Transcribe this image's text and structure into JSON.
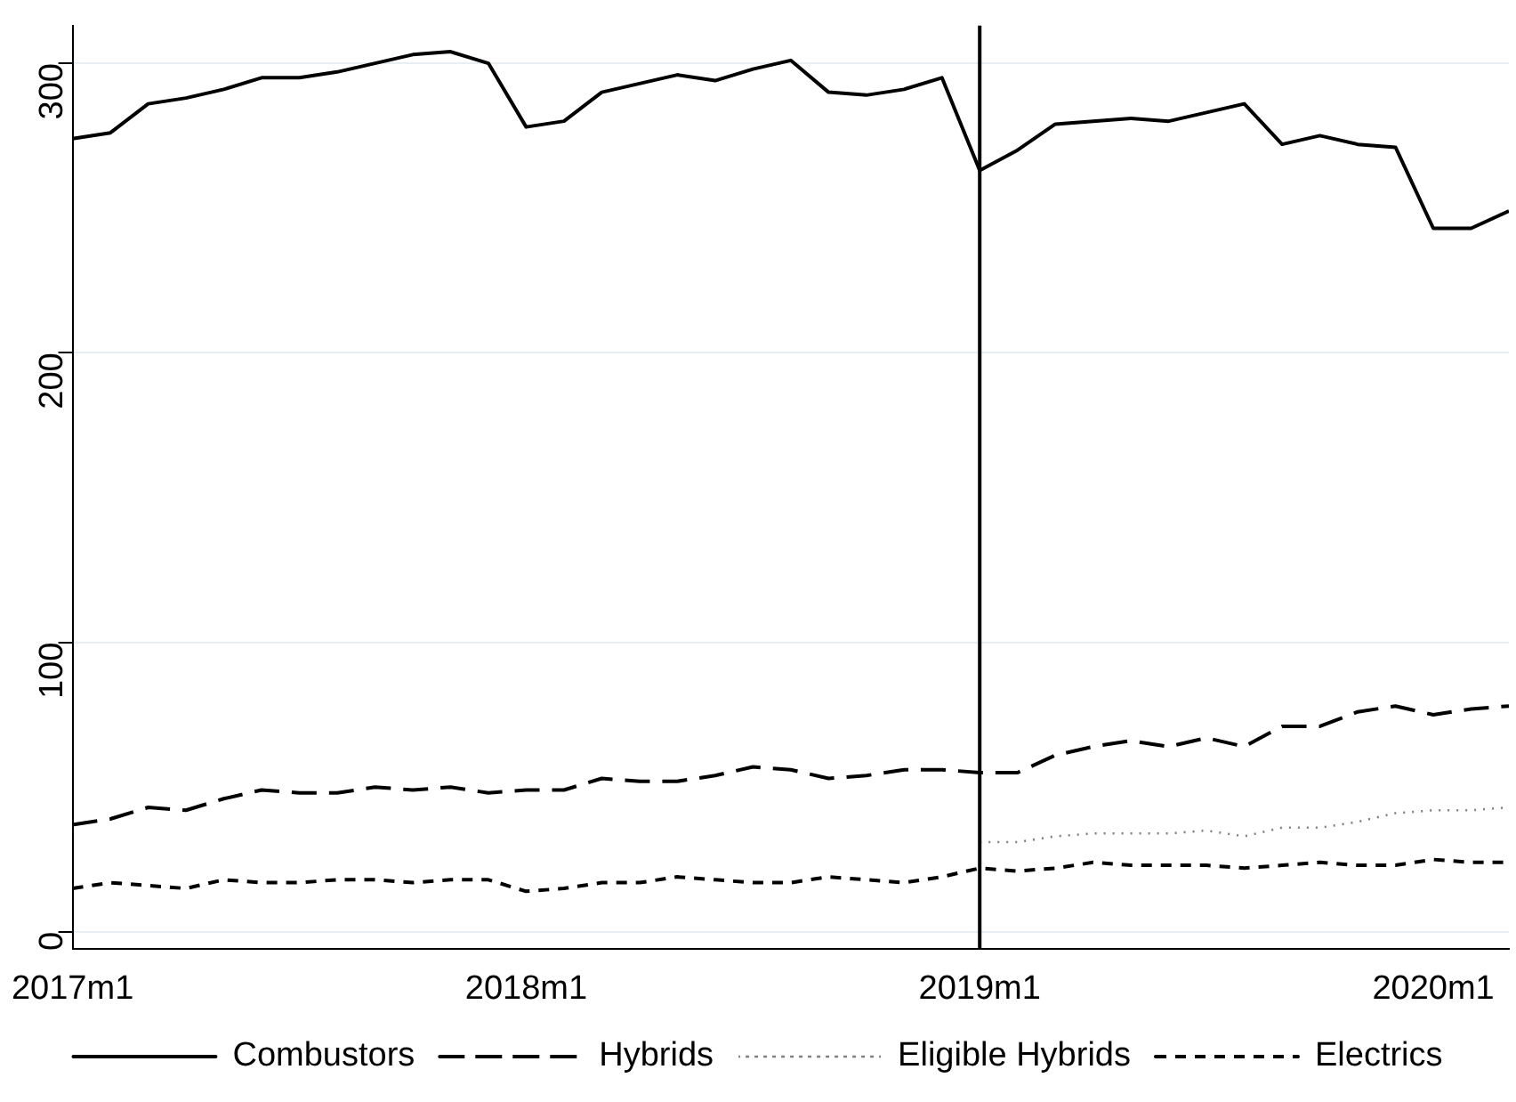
{
  "chart_data": {
    "type": "line",
    "x": [
      "2017-01",
      "2017-02",
      "2017-03",
      "2017-04",
      "2017-05",
      "2017-06",
      "2017-07",
      "2017-08",
      "2017-09",
      "2017-10",
      "2017-11",
      "2017-12",
      "2018-01",
      "2018-02",
      "2018-03",
      "2018-04",
      "2018-05",
      "2018-06",
      "2018-07",
      "2018-08",
      "2018-09",
      "2018-10",
      "2018-11",
      "2018-12",
      "2019-01",
      "2019-02",
      "2019-03",
      "2019-04",
      "2019-05",
      "2019-06",
      "2019-07",
      "2019-08",
      "2019-09",
      "2019-10",
      "2019-11",
      "2019-12",
      "2020-01",
      "2020-02",
      "2020-03"
    ],
    "series": [
      {
        "name": "Combustors",
        "color": "#000000",
        "line_style": "solid",
        "values": [
          274,
          276,
          286,
          288,
          291,
          295,
          295,
          297,
          300,
          303,
          304,
          300,
          278,
          280,
          290,
          293,
          296,
          294,
          298,
          301,
          290,
          289,
          291,
          295,
          263,
          270,
          279,
          280,
          281,
          280,
          283,
          286,
          272,
          275,
          272,
          271,
          243,
          243,
          249
        ]
      },
      {
        "name": "Hybrids",
        "color": "#000000",
        "line_style": "dashed",
        "values": [
          37,
          39,
          43,
          42,
          46,
          49,
          48,
          48,
          50,
          49,
          50,
          48,
          49,
          49,
          53,
          52,
          52,
          54,
          57,
          56,
          53,
          54,
          56,
          56,
          55,
          55,
          61,
          64,
          66,
          64,
          67,
          64,
          71,
          71,
          76,
          78,
          75,
          77,
          78
        ]
      },
      {
        "name": "Eligible Hybrids",
        "color": "#808080",
        "line_style": "dotted",
        "values": [
          null,
          null,
          null,
          null,
          null,
          null,
          null,
          null,
          null,
          null,
          null,
          null,
          null,
          null,
          null,
          null,
          null,
          null,
          null,
          null,
          null,
          null,
          null,
          null,
          31,
          31,
          33,
          34,
          34,
          34,
          35,
          33,
          36,
          36,
          38,
          41,
          42,
          42,
          43
        ]
      },
      {
        "name": "Electrics",
        "color": "#000000",
        "line_style": "dashed",
        "values": [
          15,
          17,
          16,
          15,
          18,
          17,
          17,
          18,
          18,
          17,
          18,
          18,
          14,
          15,
          17,
          17,
          19,
          18,
          17,
          17,
          19,
          18,
          17,
          19,
          22,
          21,
          22,
          24,
          23,
          23,
          23,
          22,
          23,
          24,
          23,
          23,
          25,
          24,
          24
        ]
      }
    ],
    "xlim": [
      "2017-01",
      "2020-03"
    ],
    "xticks": [
      {
        "value": "2017-01",
        "label": "2017m1"
      },
      {
        "value": "2018-01",
        "label": "2018m1"
      },
      {
        "value": "2019-01",
        "label": "2019m1"
      },
      {
        "value": "2020-01",
        "label": "2020m1"
      }
    ],
    "ylim": [
      -6,
      313
    ],
    "yticks": [
      0,
      100,
      200,
      300
    ],
    "ref_lines": [
      {
        "axis": "x",
        "value": "2019-01",
        "color": "#000000"
      }
    ],
    "grid": "y",
    "legend": "bottom",
    "marker": "none"
  }
}
